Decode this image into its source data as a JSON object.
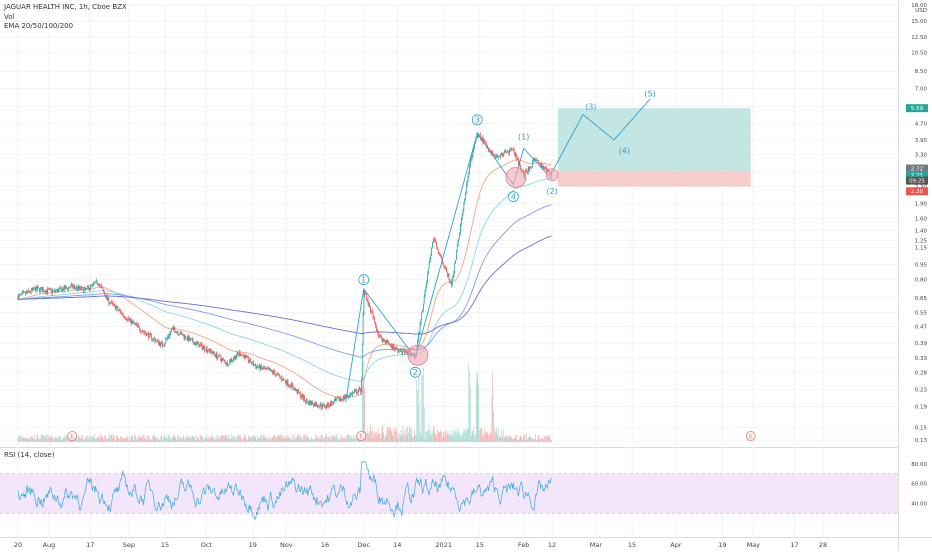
{
  "legend": {
    "symbol_line": "JAGUAR HEALTH INC, 1h, Cboe BZX",
    "vol_line": "Vol",
    "ema_line": "EMA 20/50/100/200"
  },
  "rsi": {
    "title": "RSI (14, close)",
    "ticks": [
      "80.00",
      "60.00",
      "40.00"
    ],
    "bands": {
      "upper": 70,
      "lower": 30
    }
  },
  "colors": {
    "up": "#26a69a",
    "down": "#ef5350",
    "ema20": "#f4a582",
    "ema50": "#8fd3f0",
    "ema100": "#7b9ef0",
    "ema200": "#6b6fdd",
    "wave": "#2f9fd8",
    "target_zone": "#b8e2de",
    "stop_zone": "#f8c6c6",
    "rsi_line": "#3aa9d8",
    "rsi_band": "#f3e6fb"
  },
  "chart_data": {
    "type": "candlestick",
    "scale": "log",
    "currency": "USD",
    "price_ticks": [
      "18.00",
      "15.00",
      "12.50",
      "10.50",
      "8.50",
      "7.00",
      "5.70",
      "4.70",
      "3.90",
      "3.30",
      "2.70",
      "2.30",
      "1.90",
      "1.60",
      "1.40",
      "1.25",
      "1.15",
      "0.95",
      "0.80",
      "0.65",
      "0.55",
      "0.47",
      "0.39",
      "0.33",
      "0.28",
      "0.23",
      "0.19",
      "0.15",
      "0.13"
    ],
    "price_labels": [
      {
        "text": "5.59",
        "kind": "target"
      },
      {
        "text": "2.72",
        "kind": "last"
      },
      {
        "text": "2.71",
        "kind": "last2"
      },
      {
        "text": "09:25",
        "kind": "countdown"
      },
      {
        "text": "2.30",
        "kind": "stop"
      }
    ],
    "x_labels": [
      "20",
      "Aug",
      "17",
      "Sep",
      "15",
      "Oct",
      "19",
      "Nov",
      "16",
      "Dec",
      "14",
      "2021",
      "15",
      "Feb",
      "12",
      "Mar",
      "15",
      "Apr",
      "19",
      "May",
      "17",
      "28"
    ],
    "price_path": [
      [
        "Jul-20",
        0.66
      ],
      [
        "Jul-27",
        0.72
      ],
      [
        "Aug-03",
        0.7
      ],
      [
        "Aug-10",
        0.74
      ],
      [
        "Aug-15",
        0.71
      ],
      [
        "Aug-20",
        0.78
      ],
      [
        "Aug-24",
        0.63
      ],
      [
        "Aug-31",
        0.52
      ],
      [
        "Sep-07",
        0.44
      ],
      [
        "Sep-14",
        0.38
      ],
      [
        "Sep-18",
        0.46
      ],
      [
        "Sep-25",
        0.4
      ],
      [
        "Oct-02",
        0.36
      ],
      [
        "Oct-09",
        0.31
      ],
      [
        "Oct-14",
        0.35
      ],
      [
        "Oct-20",
        0.3
      ],
      [
        "Oct-27",
        0.28
      ],
      [
        "Nov-03",
        0.24
      ],
      [
        "Nov-09",
        0.2
      ],
      [
        "Nov-16",
        0.19
      ],
      [
        "Nov-23",
        0.21
      ],
      [
        "Nov-30",
        0.23
      ],
      [
        "Dec-01",
        0.72
      ],
      [
        "Dec-07",
        0.42
      ],
      [
        "Dec-14",
        0.36
      ],
      [
        "Dec-21",
        0.34
      ],
      [
        "Dec-28",
        1.3
      ],
      [
        "Jan-04",
        0.75
      ],
      [
        "Jan-11",
        2.9
      ],
      [
        "Jan-14",
        4.2
      ],
      [
        "Jan-21",
        3.2
      ],
      [
        "Jan-28",
        3.5
      ],
      [
        "Feb-01",
        2.6
      ],
      [
        "Feb-05",
        3.1
      ],
      [
        "Feb-10",
        2.75
      ],
      [
        "Feb-12",
        2.71
      ]
    ],
    "volume_spikes": [
      "Dec-01",
      "Dec-22",
      "Dec-24",
      "Jan-11",
      "Jan-14",
      "Jan-20"
    ],
    "wave_labels": [
      "1",
      "2",
      "3",
      "4",
      "(1)",
      "(2)",
      "(3)",
      "(4)",
      "(5)"
    ],
    "earnings_markers": [
      "E",
      "E",
      "E"
    ],
    "target_zone": {
      "from": 2.72,
      "to": 5.59
    },
    "stop_zone": {
      "from": 2.3,
      "to": 2.72
    },
    "wave_projection": [
      [
        "Feb-12",
        2.71
      ],
      [
        "Feb-24",
        5.2
      ],
      [
        "Mar-08",
        3.9
      ],
      [
        "Mar-22",
        6.2
      ]
    ]
  }
}
